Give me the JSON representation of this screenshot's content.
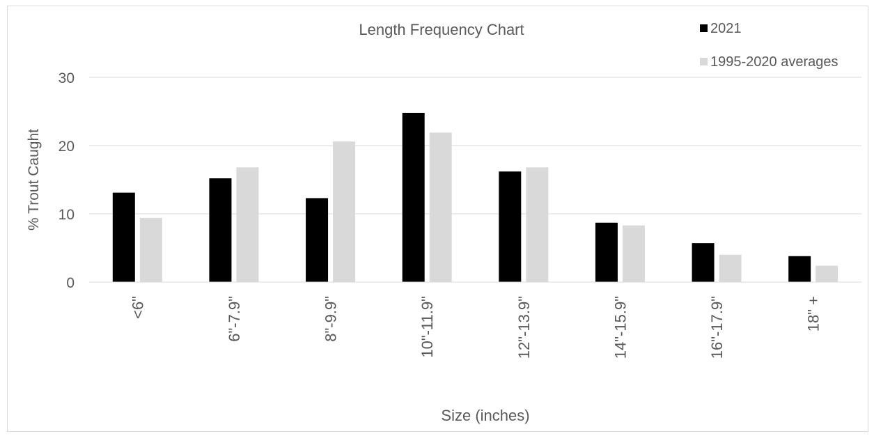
{
  "chart_data": {
    "type": "bar",
    "title": "Length Frequency Chart",
    "xlabel": "Size (inches)",
    "ylabel": "% Trout Caught",
    "categories": [
      "<6\"",
      "6\"-7.9\"",
      "8\"-9.9\"",
      "10\"-11.9\"",
      "12\"-13.9\"",
      "14\"-15.9\"",
      "16\"-17.9\"",
      "18\" +"
    ],
    "series": [
      {
        "name": "2021",
        "color": "#000000",
        "values": [
          13.1,
          15.2,
          12.3,
          24.8,
          16.2,
          8.7,
          5.7,
          3.8
        ]
      },
      {
        "name": "1995-2020 averages",
        "color": "#d9d9d9",
        "values": [
          9.4,
          16.8,
          20.6,
          21.9,
          16.8,
          8.3,
          4.0,
          2.4
        ]
      }
    ],
    "ylim": [
      0,
      30
    ],
    "yticks": [
      0,
      10,
      20,
      30
    ],
    "grid": true,
    "legend_position": "top-right"
  }
}
